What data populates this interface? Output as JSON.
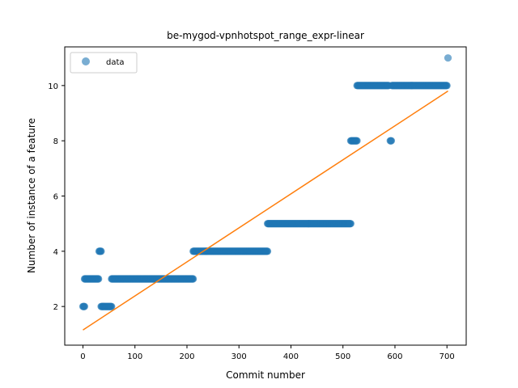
{
  "chart_data": {
    "type": "scatter",
    "title": "be-mygod-vpnhotspot_range_expr-linear",
    "xlabel": "Commit number",
    "ylabel": "Number of instance of a feature",
    "xlim": [
      -35,
      737
    ],
    "ylim": [
      0.6,
      11.4
    ],
    "xticks": [
      0,
      100,
      200,
      300,
      400,
      500,
      600,
      700
    ],
    "yticks": [
      2,
      4,
      6,
      8,
      10
    ],
    "grid": false,
    "legend": {
      "placement": "top-left",
      "entries": [
        "data"
      ]
    },
    "colors": {
      "points": "#1f77b4",
      "fit_line": "#ff7f0e"
    },
    "series": [
      {
        "name": "data",
        "kind": "scatter",
        "segments": [
          {
            "x_start": 0,
            "x_end": 3,
            "y": 2
          },
          {
            "x_start": 3,
            "x_end": 30,
            "y": 3
          },
          {
            "x_start": 31,
            "x_end": 35,
            "y": 4
          },
          {
            "x_start": 35,
            "x_end": 55,
            "y": 2
          },
          {
            "x_start": 55,
            "x_end": 212,
            "y": 3
          },
          {
            "x_start": 212,
            "x_end": 355,
            "y": 4
          },
          {
            "x_start": 355,
            "x_end": 515,
            "y": 5
          },
          {
            "x_start": 515,
            "x_end": 527,
            "y": 8
          },
          {
            "x_start": 527,
            "x_end": 588,
            "y": 10
          },
          {
            "x_start": 591,
            "x_end": 593,
            "y": 8
          },
          {
            "x_start": 594,
            "x_end": 700,
            "y": 10
          }
        ],
        "points": [
          {
            "x": 702,
            "y": 11
          }
        ]
      },
      {
        "kind": "line",
        "points": [
          {
            "x": 0,
            "y": 1.15
          },
          {
            "x": 702,
            "y": 9.8
          }
        ]
      }
    ]
  }
}
